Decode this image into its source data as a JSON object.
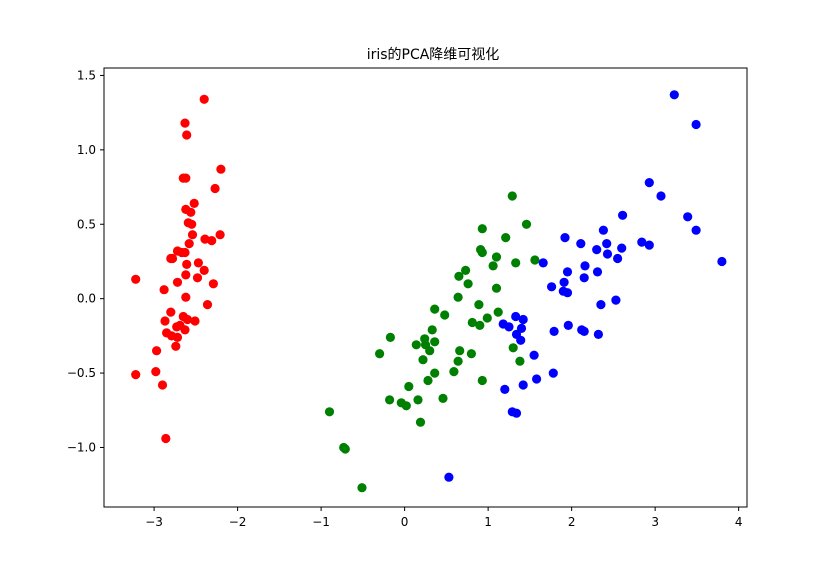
{
  "chart_data": {
    "type": "scatter",
    "title": "iris的PCA降维可视化",
    "xlabel": "",
    "ylabel": "",
    "xlim": [
      -3.6,
      4.1
    ],
    "ylim": [
      -1.4,
      1.55
    ],
    "grid": false,
    "legend": "none",
    "x_ticks": [
      {
        "value": -3,
        "label": "−3"
      },
      {
        "value": -2,
        "label": "−2"
      },
      {
        "value": -1,
        "label": "−1"
      },
      {
        "value": 0,
        "label": "0"
      },
      {
        "value": 1,
        "label": "1"
      },
      {
        "value": 2,
        "label": "2"
      },
      {
        "value": 3,
        "label": "3"
      },
      {
        "value": 4,
        "label": "4"
      }
    ],
    "y_ticks": [
      {
        "value": -1.0,
        "label": "−1.0"
      },
      {
        "value": -0.5,
        "label": "−0.5"
      },
      {
        "value": 0.0,
        "label": "0.0"
      },
      {
        "value": 0.5,
        "label": "0.5"
      },
      {
        "value": 1.0,
        "label": "1.0"
      },
      {
        "value": 1.5,
        "label": "1.5"
      }
    ],
    "series": [
      {
        "color": "#ff0000",
        "points": [
          [
            -2.4,
            1.34
          ],
          [
            -2.63,
            1.18
          ],
          [
            -2.61,
            1.1
          ],
          [
            -2.2,
            0.87
          ],
          [
            -2.65,
            0.81
          ],
          [
            -2.62,
            0.81
          ],
          [
            -2.27,
            0.74
          ],
          [
            -2.52,
            0.64
          ],
          [
            -2.62,
            0.6
          ],
          [
            -2.56,
            0.58
          ],
          [
            -2.59,
            0.51
          ],
          [
            -2.55,
            0.5
          ],
          [
            -2.54,
            0.43
          ],
          [
            -2.21,
            0.43
          ],
          [
            -2.39,
            0.4
          ],
          [
            -2.31,
            0.39
          ],
          [
            -2.58,
            0.37
          ],
          [
            -2.72,
            0.32
          ],
          [
            -2.67,
            0.31
          ],
          [
            -2.63,
            0.31
          ],
          [
            -2.78,
            0.27
          ],
          [
            -2.8,
            0.27
          ],
          [
            -2.47,
            0.24
          ],
          [
            -2.61,
            0.23
          ],
          [
            -2.4,
            0.19
          ],
          [
            -2.62,
            0.16
          ],
          [
            -2.48,
            0.14
          ],
          [
            -2.29,
            0.1
          ],
          [
            -2.72,
            0.11
          ],
          [
            -3.22,
            0.13
          ],
          [
            -2.88,
            0.06
          ],
          [
            -2.62,
            0.01
          ],
          [
            -2.36,
            -0.04
          ],
          [
            -2.8,
            -0.09
          ],
          [
            -2.65,
            -0.12
          ],
          [
            -2.6,
            -0.14
          ],
          [
            -2.87,
            -0.15
          ],
          [
            -2.69,
            -0.18
          ],
          [
            -2.51,
            -0.15
          ],
          [
            -2.73,
            -0.19
          ],
          [
            -2.63,
            -0.21
          ],
          [
            -2.85,
            -0.23
          ],
          [
            -2.79,
            -0.25
          ],
          [
            -2.72,
            -0.26
          ],
          [
            -2.74,
            -0.32
          ],
          [
            -2.97,
            -0.35
          ],
          [
            -2.98,
            -0.49
          ],
          [
            -3.22,
            -0.51
          ],
          [
            -2.9,
            -0.58
          ],
          [
            -2.86,
            -0.94
          ]
        ]
      },
      {
        "color": "#008000",
        "points": [
          [
            1.29,
            0.69
          ],
          [
            1.46,
            0.5
          ],
          [
            0.93,
            0.47
          ],
          [
            1.21,
            0.41
          ],
          [
            0.91,
            0.33
          ],
          [
            0.93,
            0.31
          ],
          [
            1.1,
            0.28
          ],
          [
            1.33,
            0.24
          ],
          [
            1.56,
            0.26
          ],
          [
            0.73,
            0.19
          ],
          [
            1.06,
            0.22
          ],
          [
            0.65,
            0.15
          ],
          [
            1.1,
            0.07
          ],
          [
            0.76,
            0.1
          ],
          [
            0.64,
            0.01
          ],
          [
            0.89,
            -0.04
          ],
          [
            0.36,
            -0.07
          ],
          [
            0.48,
            -0.11
          ],
          [
            1.12,
            -0.09
          ],
          [
            0.99,
            -0.13
          ],
          [
            0.81,
            -0.16
          ],
          [
            0.9,
            -0.18
          ],
          [
            0.33,
            -0.21
          ],
          [
            -0.17,
            -0.26
          ],
          [
            0.24,
            -0.27
          ],
          [
            0.25,
            -0.31
          ],
          [
            0.36,
            -0.29
          ],
          [
            0.14,
            -0.31
          ],
          [
            0.3,
            -0.35
          ],
          [
            0.66,
            -0.35
          ],
          [
            0.8,
            -0.37
          ],
          [
            -0.3,
            -0.37
          ],
          [
            0.22,
            -0.41
          ],
          [
            0.64,
            -0.42
          ],
          [
            1.3,
            -0.33
          ],
          [
            1.38,
            -0.42
          ],
          [
            0.59,
            -0.49
          ],
          [
            0.36,
            -0.5
          ],
          [
            0.28,
            -0.55
          ],
          [
            0.93,
            -0.55
          ],
          [
            0.05,
            -0.59
          ],
          [
            0.46,
            -0.67
          ],
          [
            -0.18,
            -0.68
          ],
          [
            0.16,
            -0.68
          ],
          [
            -0.04,
            -0.7
          ],
          [
            0.02,
            -0.72
          ],
          [
            -0.9,
            -0.76
          ],
          [
            -0.73,
            -1.0
          ],
          [
            -0.71,
            -1.01
          ],
          [
            0.19,
            -0.83
          ],
          [
            -0.51,
            -1.27
          ]
        ]
      },
      {
        "color": "#0000ff",
        "points": [
          [
            3.23,
            1.37
          ],
          [
            3.49,
            1.17
          ],
          [
            2.93,
            0.78
          ],
          [
            3.07,
            0.69
          ],
          [
            2.61,
            0.56
          ],
          [
            3.39,
            0.55
          ],
          [
            3.49,
            0.46
          ],
          [
            2.38,
            0.46
          ],
          [
            1.92,
            0.41
          ],
          [
            2.84,
            0.38
          ],
          [
            2.11,
            0.37
          ],
          [
            2.42,
            0.37
          ],
          [
            2.3,
            0.33
          ],
          [
            2.6,
            0.34
          ],
          [
            2.93,
            0.36
          ],
          [
            2.43,
            0.3
          ],
          [
            2.55,
            0.27
          ],
          [
            1.66,
            0.24
          ],
          [
            2.16,
            0.22
          ],
          [
            1.95,
            0.18
          ],
          [
            2.31,
            0.18
          ],
          [
            3.8,
            0.25
          ],
          [
            2.15,
            0.14
          ],
          [
            1.91,
            0.11
          ],
          [
            1.76,
            0.08
          ],
          [
            1.9,
            0.05
          ],
          [
            1.95,
            0.04
          ],
          [
            2.35,
            -0.04
          ],
          [
            2.53,
            -0.01
          ],
          [
            1.42,
            -0.14
          ],
          [
            1.33,
            -0.12
          ],
          [
            1.18,
            -0.17
          ],
          [
            1.25,
            -0.19
          ],
          [
            1.96,
            -0.18
          ],
          [
            1.79,
            -0.22
          ],
          [
            2.12,
            -0.21
          ],
          [
            2.15,
            -0.22
          ],
          [
            2.32,
            -0.24
          ],
          [
            1.4,
            -0.2
          ],
          [
            1.34,
            -0.24
          ],
          [
            1.39,
            -0.28
          ],
          [
            1.55,
            -0.38
          ],
          [
            1.78,
            -0.5
          ],
          [
            1.58,
            -0.54
          ],
          [
            1.42,
            -0.58
          ],
          [
            1.2,
            -0.61
          ],
          [
            1.29,
            -0.76
          ],
          [
            1.34,
            -0.77
          ],
          [
            0.53,
            -1.2
          ]
        ]
      }
    ]
  }
}
